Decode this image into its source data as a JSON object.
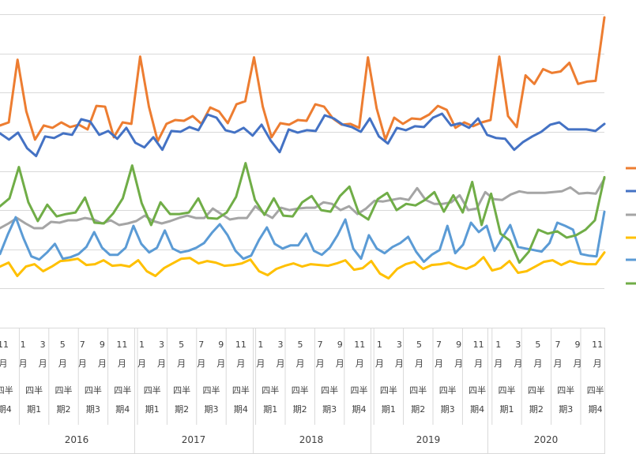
{
  "chart_data": {
    "type": "line",
    "grid": true,
    "legend_placement": "right",
    "ylim": [
      0,
      400
    ],
    "y_gridlines": [
      0,
      50,
      100,
      150,
      200,
      250,
      300,
      350,
      400
    ],
    "month_ticks": [
      [
        "11",
        "月"
      ],
      [
        "1",
        "月"
      ],
      [
        "3",
        "月"
      ],
      [
        "5",
        "月"
      ],
      [
        "7",
        "月"
      ],
      [
        "9",
        "月"
      ],
      [
        "11",
        "月"
      ],
      [
        "1",
        "月"
      ],
      [
        "3",
        "月"
      ],
      [
        "5",
        "月"
      ],
      [
        "7",
        "月"
      ],
      [
        "9",
        "月"
      ],
      [
        "11",
        "月"
      ],
      [
        "1",
        "月"
      ],
      [
        "3",
        "月"
      ],
      [
        "5",
        "月"
      ],
      [
        "7",
        "月"
      ],
      [
        "9",
        "月"
      ],
      [
        "11",
        "月"
      ],
      [
        "1",
        "月"
      ],
      [
        "3",
        "月"
      ],
      [
        "5",
        "月"
      ],
      [
        "7",
        "月"
      ],
      [
        "9",
        "月"
      ],
      [
        "11",
        "月"
      ],
      [
        "1",
        "月"
      ],
      [
        "3",
        "月"
      ],
      [
        "5",
        "月"
      ],
      [
        "7",
        "月"
      ],
      [
        "9",
        "月"
      ],
      [
        "11",
        "月"
      ]
    ],
    "quarter_labels": [
      [
        "四半",
        "期4"
      ],
      [
        "四半",
        "期1"
      ],
      [
        "四半",
        "期2"
      ],
      [
        "四半",
        "期3"
      ],
      [
        "四半",
        "期4"
      ],
      [
        "四半",
        "期1"
      ],
      [
        "四半",
        "期2"
      ],
      [
        "四半",
        "期3"
      ],
      [
        "四半",
        "期4"
      ],
      [
        "四半",
        "期1"
      ],
      [
        "四半",
        "期2"
      ],
      [
        "四半",
        "期3"
      ],
      [
        "四半",
        "期4"
      ],
      [
        "四半",
        "期1"
      ],
      [
        "四半",
        "期2"
      ],
      [
        "四半",
        "期3"
      ],
      [
        "四半",
        "期4"
      ],
      [
        "四半",
        "期1"
      ],
      [
        "四半",
        "期2"
      ],
      [
        "四半",
        "期3"
      ],
      [
        "四半",
        "期4"
      ]
    ],
    "years": [
      "2016",
      "2017",
      "2018",
      "2019",
      "2020"
    ],
    "series": [
      {
        "color": "#ED7D31",
        "values": [
          258,
          262,
          342,
          276,
          240,
          258,
          255,
          262,
          256,
          259,
          253,
          283,
          282,
          243,
          262,
          260,
          346,
          282,
          238,
          260,
          265,
          264,
          270,
          260,
          281,
          276,
          261,
          285,
          289,
          345,
          282,
          243,
          261,
          259,
          265,
          264,
          285,
          282,
          267,
          259,
          260,
          255,
          345,
          280,
          240,
          268,
          260,
          267,
          266,
          272,
          283,
          278,
          255,
          262,
          257,
          262,
          265,
          346,
          270,
          256,
          322,
          311,
          330,
          325,
          327,
          338,
          311,
          314,
          315,
          396
        ]
      },
      {
        "color": "#4472C4",
        "values": [
          248,
          240,
          249,
          229,
          219,
          244,
          242,
          248,
          246,
          266,
          263,
          246,
          251,
          241,
          255,
          236,
          230,
          243,
          227,
          251,
          250,
          256,
          252,
          272,
          268,
          252,
          249,
          255,
          245,
          259,
          239,
          224,
          253,
          249,
          252,
          251,
          271,
          267,
          259,
          256,
          250,
          267,
          244,
          235,
          255,
          252,
          257,
          256,
          268,
          273,
          258,
          261,
          255,
          267,
          246,
          242,
          241,
          227,
          237,
          244,
          250,
          259,
          262,
          253,
          253,
          253,
          251,
          260
        ]
      },
      {
        "color": "#A5A5A5",
        "values": [
          127,
          133,
          140,
          133,
          127,
          127,
          135,
          134,
          137,
          137,
          140,
          138,
          133,
          137,
          131,
          133,
          136,
          143,
          136,
          133,
          136,
          140,
          143,
          140,
          140,
          152,
          145,
          138,
          140,
          140,
          155,
          146,
          140,
          153,
          150,
          152,
          153,
          153,
          160,
          158,
          150,
          155,
          145,
          152,
          162,
          161,
          163,
          165,
          163,
          178,
          163,
          158,
          158,
          160,
          169,
          150,
          152,
          173,
          164,
          163,
          170,
          174,
          172,
          172,
          172,
          173,
          174,
          179,
          171,
          172,
          171,
          190
        ]
      },
      {
        "color": "#FFC000",
        "values": [
          78,
          83,
          66,
          78,
          81,
          72,
          78,
          85,
          86,
          88,
          80,
          81,
          86,
          79,
          80,
          78,
          86,
          72,
          66,
          76,
          82,
          88,
          89,
          82,
          85,
          83,
          79,
          80,
          82,
          87,
          72,
          67,
          75,
          79,
          82,
          78,
          81,
          80,
          79,
          82,
          86,
          74,
          76,
          85,
          69,
          63,
          75,
          81,
          84,
          75,
          80,
          81,
          83,
          78,
          75,
          80,
          90,
          73,
          76,
          85,
          70,
          72,
          78,
          84,
          86,
          80,
          85,
          82,
          81,
          81,
          96
        ]
      },
      {
        "color": "#5B9BD5",
        "values": [
          94,
          119,
          141,
          114,
          91,
          87,
          96,
          107,
          88,
          90,
          94,
          103,
          122,
          102,
          93,
          93,
          102,
          130,
          107,
          96,
          102,
          124,
          101,
          96,
          98,
          102,
          108,
          121,
          132,
          118,
          98,
          88,
          92,
          112,
          128,
          107,
          101,
          105,
          105,
          120,
          98,
          93,
          102,
          118,
          138,
          101,
          88,
          118,
          101,
          95,
          103,
          108,
          116,
          97,
          84,
          93,
          99,
          130,
          95,
          106,
          134,
          122,
          130,
          98,
          115,
          131,
          103,
          101,
          99,
          97,
          108,
          134,
          130,
          125,
          94,
          92,
          91,
          148
        ]
      },
      {
        "color": "#70AD47",
        "values": [
          155,
          165,
          205,
          160,
          136,
          157,
          142,
          145,
          147,
          166,
          134,
          133,
          146,
          165,
          207,
          159,
          131,
          160,
          145,
          145,
          147,
          165,
          140,
          139,
          147,
          167,
          210,
          163,
          144,
          165,
          143,
          142,
          160,
          168,
          150,
          148,
          168,
          180,
          146,
          138,
          164,
          172,
          150,
          158,
          156,
          163,
          173,
          148,
          169,
          147,
          186,
          131,
          171,
          120,
          111,
          83,
          97,
          125,
          120,
          123,
          115,
          118,
          125,
          137,
          192
        ]
      }
    ]
  }
}
